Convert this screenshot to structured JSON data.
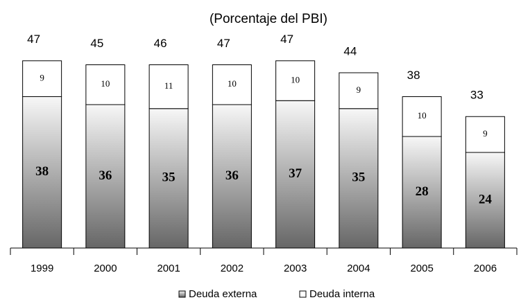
{
  "chart_data": {
    "type": "stacked_bar",
    "title": "(Porcentaje del PBI)",
    "categories": [
      "1999",
      "2000",
      "2001",
      "2002",
      "2003",
      "2004",
      "2005",
      "2006"
    ],
    "series": [
      {
        "name": "Deuda externa",
        "color": "#666666",
        "values": [
          38,
          36,
          35,
          36,
          37,
          35,
          28,
          24
        ]
      },
      {
        "name": "Deuda interna",
        "color": "#ffffff",
        "values": [
          9,
          10,
          11,
          10,
          10,
          9,
          10,
          9
        ]
      }
    ],
    "total_labels": [
      "47",
      "45",
      "46",
      "47",
      "47",
      "44",
      "38",
      "33"
    ]
  }
}
